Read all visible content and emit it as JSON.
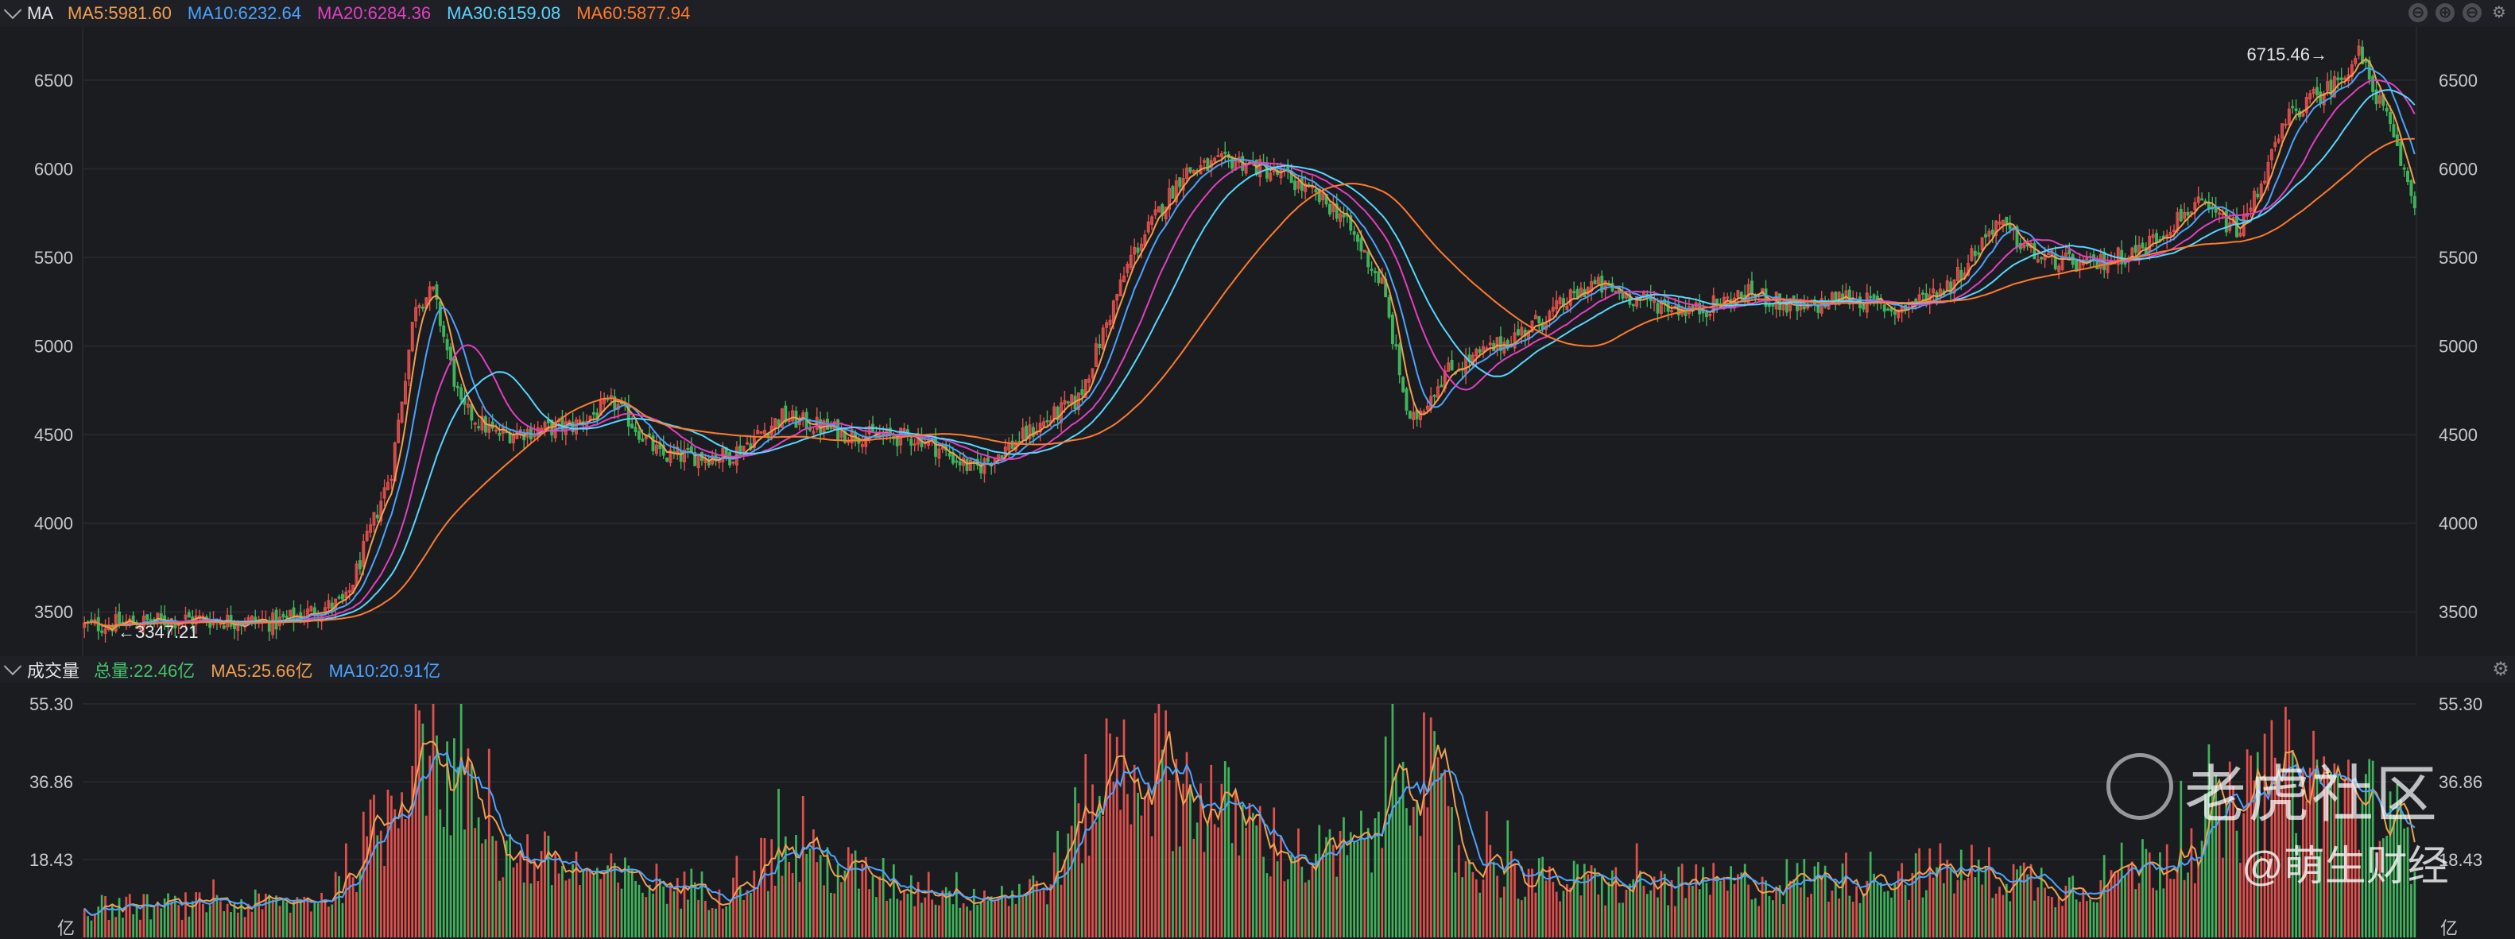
{
  "toolbar": {
    "indicator": "MA",
    "ma_legends": [
      {
        "text": "MA5:5981.60",
        "color": "#f0a050"
      },
      {
        "text": "MA10:6232.64",
        "color": "#4aa3ff"
      },
      {
        "text": "MA20:6284.36",
        "color": "#e040c0"
      },
      {
        "text": "MA30:6159.08",
        "color": "#56d7ff"
      },
      {
        "text": "MA60:5877.94",
        "color": "#ff7a2e"
      }
    ],
    "controls": [
      "⊖",
      "⊕",
      "⊖"
    ],
    "settings_icon": "gear-icon"
  },
  "volume_header": {
    "title": "成交量",
    "legends": [
      {
        "text": "总量:22.46亿",
        "color": "#46c46a"
      },
      {
        "text": "MA5:25.66亿",
        "color": "#f0a050"
      },
      {
        "text": "MA10:20.91亿",
        "color": "#4aa3ff"
      }
    ]
  },
  "colors": {
    "up": "#e2504c",
    "down": "#3fb35a",
    "grid": "#26272d",
    "axis_text": "#c8c8cc"
  },
  "annotations": {
    "high": "6715.46→",
    "low": "←3347.21"
  },
  "watermark": {
    "brand": "老虎社区",
    "author": "@萌生财经"
  },
  "chart_data": [
    {
      "type": "candlestick",
      "title": "MA",
      "ylim": [
        3250,
        6800
      ],
      "y_ticks": [
        "3500",
        "4000",
        "4500",
        "5000",
        "5500",
        "6000",
        "6500"
      ],
      "grid": true,
      "legend": "top-left",
      "high_label": 6715.46,
      "low_label": 3347.21,
      "close_keypoints": [
        [
          0,
          3420
        ],
        [
          30,
          3460
        ],
        [
          55,
          3440
        ],
        [
          75,
          3560
        ],
        [
          88,
          4300
        ],
        [
          95,
          5250
        ],
        [
          100,
          5300
        ],
        [
          108,
          4650
        ],
        [
          118,
          4500
        ],
        [
          140,
          4550
        ],
        [
          152,
          4680
        ],
        [
          165,
          4380
        ],
        [
          185,
          4380
        ],
        [
          200,
          4600
        ],
        [
          220,
          4500
        ],
        [
          240,
          4480
        ],
        [
          255,
          4300
        ],
        [
          270,
          4500
        ],
        [
          285,
          4700
        ],
        [
          300,
          5500
        ],
        [
          315,
          5980
        ],
        [
          330,
          6050
        ],
        [
          345,
          5950
        ],
        [
          360,
          5750
        ],
        [
          372,
          5350
        ],
        [
          380,
          4550
        ],
        [
          390,
          4850
        ],
        [
          405,
          5000
        ],
        [
          418,
          5150
        ],
        [
          432,
          5350
        ],
        [
          448,
          5250
        ],
        [
          462,
          5200
        ],
        [
          478,
          5300
        ],
        [
          492,
          5200
        ],
        [
          505,
          5280
        ],
        [
          520,
          5200
        ],
        [
          535,
          5350
        ],
        [
          548,
          5700
        ],
        [
          560,
          5500
        ],
        [
          575,
          5450
        ],
        [
          590,
          5550
        ],
        [
          605,
          5800
        ],
        [
          618,
          5650
        ],
        [
          632,
          6300
        ],
        [
          645,
          6480
        ],
        [
          652,
          6650
        ],
        [
          660,
          6280
        ],
        [
          668,
          5800
        ]
      ],
      "n_candles": 669,
      "ma_periods": [
        5,
        10,
        20,
        30,
        60
      ]
    },
    {
      "type": "bar",
      "title": "成交量",
      "unit": "亿",
      "ylim": [
        0,
        55.3
      ],
      "y_ticks": [
        "18.43",
        "36.86",
        "55.30"
      ],
      "volume_keypoints": [
        [
          0,
          7
        ],
        [
          60,
          8
        ],
        [
          70,
          10
        ],
        [
          88,
          30
        ],
        [
          95,
          55
        ],
        [
          105,
          38
        ],
        [
          120,
          20
        ],
        [
          150,
          14
        ],
        [
          180,
          11
        ],
        [
          200,
          20
        ],
        [
          230,
          13
        ],
        [
          260,
          10
        ],
        [
          275,
          12
        ],
        [
          295,
          42
        ],
        [
          310,
          38
        ],
        [
          330,
          28
        ],
        [
          350,
          18
        ],
        [
          368,
          22
        ],
        [
          380,
          48
        ],
        [
          395,
          18
        ],
        [
          420,
          13
        ],
        [
          460,
          12
        ],
        [
          500,
          14
        ],
        [
          540,
          16
        ],
        [
          570,
          12
        ],
        [
          600,
          20
        ],
        [
          630,
          38
        ],
        [
          645,
          36
        ],
        [
          660,
          28
        ],
        [
          668,
          22
        ]
      ],
      "series": [
        {
          "name": "MA5",
          "period": 5
        },
        {
          "name": "MA10",
          "period": 10
        }
      ]
    }
  ]
}
